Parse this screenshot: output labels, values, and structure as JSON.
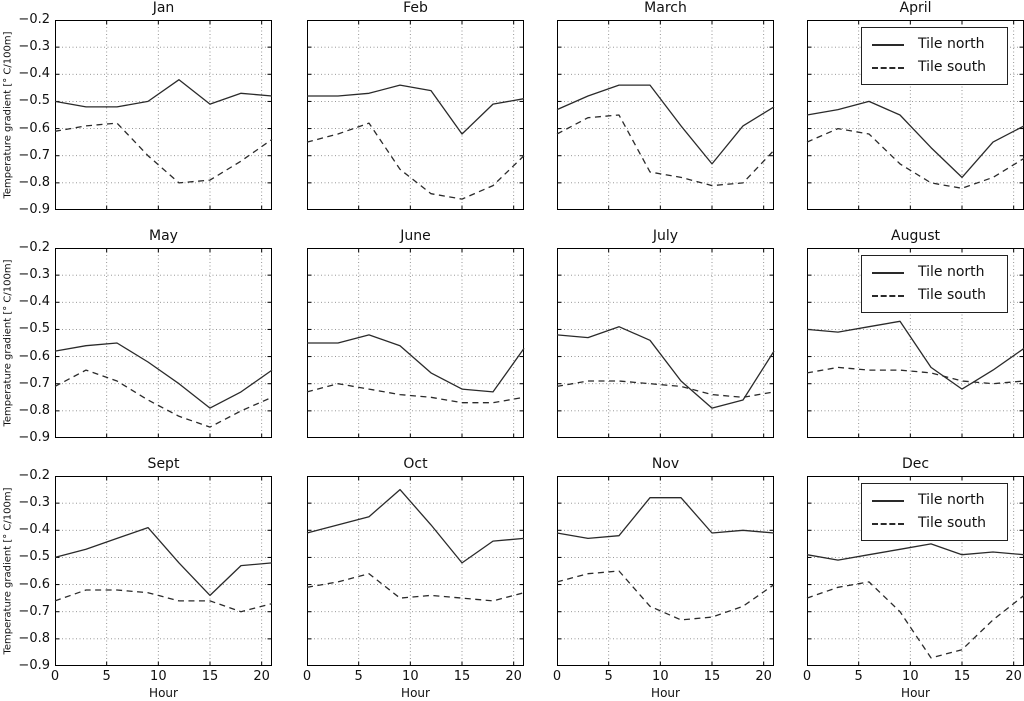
{
  "figure": {
    "background": "#ffffff",
    "axis_color": "#000000",
    "line_color": "#2a2a2a",
    "grid_color": "#8a8a8a",
    "y_tick_labels": [
      "−0.2",
      "−0.3",
      "−0.4",
      "−0.5",
      "−0.6",
      "−0.7",
      "−0.8",
      "−0.9"
    ],
    "x_tick_labels": [
      "0",
      "5",
      "10",
      "15",
      "20"
    ]
  },
  "chart_data": {
    "type": "line",
    "x": [
      0,
      3,
      6,
      9,
      12,
      15,
      18,
      21
    ],
    "xlabel": "Hour",
    "ylabel": "Temperature gradient [° C/100m]",
    "xlim": [
      0,
      21
    ],
    "ylim": [
      -0.9,
      -0.2
    ],
    "x_ticks": [
      0,
      5,
      10,
      15,
      20
    ],
    "y_ticks": [
      -0.2,
      -0.3,
      -0.4,
      -0.5,
      -0.6,
      -0.7,
      -0.8,
      -0.9
    ],
    "grid": true,
    "legend_position": "upper right",
    "legend_on_panels": [
      "April",
      "August",
      "Dec"
    ],
    "panels": [
      {
        "title": "Jan",
        "series": [
          {
            "name": "Tile north",
            "style": "solid",
            "values": [
              -0.5,
              -0.52,
              -0.52,
              -0.5,
              -0.42,
              -0.51,
              -0.47,
              -0.48
            ]
          },
          {
            "name": "Tile south",
            "style": "dashed",
            "values": [
              -0.61,
              -0.59,
              -0.58,
              -0.7,
              -0.8,
              -0.79,
              -0.72,
              -0.64
            ]
          }
        ]
      },
      {
        "title": "Feb",
        "series": [
          {
            "name": "Tile north",
            "style": "solid",
            "values": [
              -0.48,
              -0.48,
              -0.47,
              -0.44,
              -0.46,
              -0.62,
              -0.51,
              -0.49
            ]
          },
          {
            "name": "Tile south",
            "style": "dashed",
            "values": [
              -0.65,
              -0.62,
              -0.58,
              -0.75,
              -0.84,
              -0.86,
              -0.81,
              -0.7
            ]
          }
        ]
      },
      {
        "title": "March",
        "series": [
          {
            "name": "Tile north",
            "style": "solid",
            "values": [
              -0.53,
              -0.48,
              -0.44,
              -0.44,
              -0.59,
              -0.73,
              -0.59,
              -0.52
            ]
          },
          {
            "name": "Tile south",
            "style": "dashed",
            "values": [
              -0.62,
              -0.56,
              -0.55,
              -0.76,
              -0.78,
              -0.81,
              -0.8,
              -0.68
            ]
          }
        ]
      },
      {
        "title": "April",
        "series": [
          {
            "name": "Tile north",
            "style": "solid",
            "values": [
              -0.55,
              -0.53,
              -0.5,
              -0.55,
              -0.67,
              -0.78,
              -0.65,
              -0.59
            ]
          },
          {
            "name": "Tile south",
            "style": "dashed",
            "values": [
              -0.65,
              -0.6,
              -0.62,
              -0.73,
              -0.8,
              -0.82,
              -0.78,
              -0.71
            ]
          }
        ]
      },
      {
        "title": "May",
        "series": [
          {
            "name": "Tile north",
            "style": "solid",
            "values": [
              -0.58,
              -0.56,
              -0.55,
              -0.62,
              -0.7,
              -0.79,
              -0.73,
              -0.65
            ]
          },
          {
            "name": "Tile south",
            "style": "dashed",
            "values": [
              -0.71,
              -0.65,
              -0.69,
              -0.76,
              -0.82,
              -0.86,
              -0.8,
              -0.75
            ]
          }
        ]
      },
      {
        "title": "June",
        "series": [
          {
            "name": "Tile north",
            "style": "solid",
            "values": [
              -0.55,
              -0.55,
              -0.52,
              -0.56,
              -0.66,
              -0.72,
              -0.73,
              -0.57
            ]
          },
          {
            "name": "Tile south",
            "style": "dashed",
            "values": [
              -0.73,
              -0.7,
              -0.72,
              -0.74,
              -0.75,
              -0.77,
              -0.77,
              -0.75
            ]
          }
        ]
      },
      {
        "title": "July",
        "series": [
          {
            "name": "Tile north",
            "style": "solid",
            "values": [
              -0.52,
              -0.53,
              -0.49,
              -0.54,
              -0.69,
              -0.79,
              -0.76,
              -0.58
            ]
          },
          {
            "name": "Tile south",
            "style": "dashed",
            "values": [
              -0.71,
              -0.69,
              -0.69,
              -0.7,
              -0.71,
              -0.74,
              -0.75,
              -0.73
            ]
          }
        ]
      },
      {
        "title": "August",
        "series": [
          {
            "name": "Tile north",
            "style": "solid",
            "values": [
              -0.5,
              -0.51,
              -0.49,
              -0.47,
              -0.64,
              -0.72,
              -0.65,
              -0.57
            ]
          },
          {
            "name": "Tile south",
            "style": "dashed",
            "values": [
              -0.66,
              -0.64,
              -0.65,
              -0.65,
              -0.66,
              -0.69,
              -0.7,
              -0.69
            ]
          }
        ]
      },
      {
        "title": "Sept",
        "series": [
          {
            "name": "Tile north",
            "style": "solid",
            "values": [
              -0.5,
              -0.47,
              -0.43,
              -0.39,
              -0.52,
              -0.64,
              -0.53,
              -0.52
            ]
          },
          {
            "name": "Tile south",
            "style": "dashed",
            "values": [
              -0.66,
              -0.62,
              -0.62,
              -0.63,
              -0.66,
              -0.66,
              -0.7,
              -0.67
            ]
          }
        ]
      },
      {
        "title": "Oct",
        "series": [
          {
            "name": "Tile north",
            "style": "solid",
            "values": [
              -0.41,
              -0.38,
              -0.35,
              -0.25,
              -0.38,
              -0.52,
              -0.44,
              -0.43
            ]
          },
          {
            "name": "Tile south",
            "style": "dashed",
            "values": [
              -0.61,
              -0.59,
              -0.56,
              -0.65,
              -0.64,
              -0.65,
              -0.66,
              -0.63
            ]
          }
        ]
      },
      {
        "title": "Nov",
        "series": [
          {
            "name": "Tile north",
            "style": "solid",
            "values": [
              -0.41,
              -0.43,
              -0.42,
              -0.28,
              -0.28,
              -0.41,
              -0.4,
              -0.41
            ]
          },
          {
            "name": "Tile south",
            "style": "dashed",
            "values": [
              -0.59,
              -0.56,
              -0.55,
              -0.68,
              -0.73,
              -0.72,
              -0.68,
              -0.6
            ]
          }
        ]
      },
      {
        "title": "Dec",
        "series": [
          {
            "name": "Tile north",
            "style": "solid",
            "values": [
              -0.49,
              -0.51,
              -0.49,
              -0.47,
              -0.45,
              -0.49,
              -0.48,
              -0.49
            ]
          },
          {
            "name": "Tile south",
            "style": "dashed",
            "values": [
              -0.65,
              -0.61,
              -0.59,
              -0.7,
              -0.87,
              -0.84,
              -0.73,
              -0.64
            ]
          }
        ]
      }
    ]
  }
}
